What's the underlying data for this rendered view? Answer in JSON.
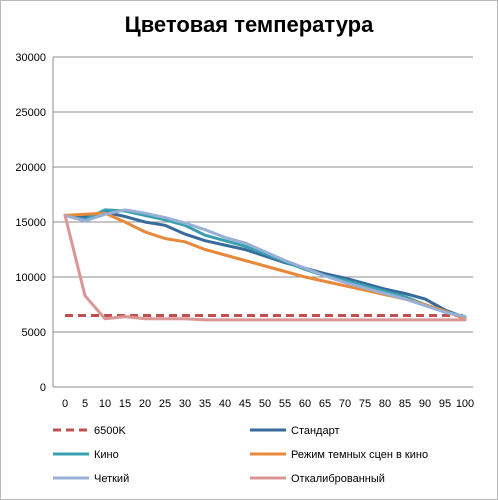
{
  "chart_data": {
    "type": "line",
    "title": "Цветовая температура",
    "xlabel": "",
    "ylabel": "",
    "ylim": [
      0,
      30000
    ],
    "yticks": [
      0,
      5000,
      10000,
      15000,
      20000,
      25000,
      30000
    ],
    "x": [
      0,
      5,
      10,
      15,
      20,
      25,
      30,
      35,
      40,
      45,
      50,
      55,
      60,
      65,
      70,
      75,
      80,
      85,
      90,
      95,
      100
    ],
    "grid": "horizontal",
    "legend_position": "bottom",
    "series": [
      {
        "name": "6500K",
        "color": "#c0504d",
        "dashed": true,
        "width": 3,
        "values": [
          6500,
          6500,
          6500,
          6500,
          6500,
          6500,
          6500,
          6500,
          6500,
          6500,
          6500,
          6500,
          6500,
          6500,
          6500,
          6500,
          6500,
          6500,
          6500,
          6500,
          6500
        ]
      },
      {
        "name": "Стандарт",
        "color": "#386b9c",
        "dashed": false,
        "width": 3,
        "values": [
          15600,
          15500,
          15900,
          15500,
          15000,
          14700,
          13900,
          13300,
          12900,
          12500,
          11900,
          11300,
          10800,
          10300,
          9900,
          9400,
          8900,
          8500,
          8000,
          7000,
          6300
        ]
      },
      {
        "name": "Кино",
        "color": "#37a0ae",
        "dashed": false,
        "width": 3,
        "values": [
          15600,
          15200,
          16100,
          16000,
          15600,
          15200,
          14700,
          13800,
          13300,
          12800,
          12100,
          11400,
          10700,
          10100,
          9700,
          9200,
          8700,
          8200,
          7500,
          6800,
          6400
        ]
      },
      {
        "name": "Режим темных сцен в кино",
        "color": "#e8883a",
        "dashed": false,
        "width": 3,
        "values": [
          15600,
          15700,
          15800,
          15000,
          14100,
          13500,
          13200,
          12500,
          12000,
          11500,
          11000,
          10500,
          10000,
          9600,
          9200,
          8800,
          8400,
          8000,
          7500,
          6900,
          6200
        ]
      },
      {
        "name": "Четкий",
        "color": "#98b0d6",
        "dashed": false,
        "width": 3,
        "values": [
          15600,
          15100,
          15700,
          16100,
          15800,
          15400,
          14900,
          14300,
          13600,
          13100,
          12300,
          11500,
          10800,
          10100,
          9500,
          9000,
          8500,
          8000,
          7400,
          6800,
          6400
        ]
      },
      {
        "name": "Откалиброванный",
        "color": "#d99694",
        "dashed": false,
        "width": 3,
        "values": [
          15600,
          8300,
          6200,
          6400,
          6200,
          6200,
          6200,
          6100,
          6100,
          6100,
          6100,
          6100,
          6100,
          6100,
          6100,
          6100,
          6100,
          6100,
          6100,
          6100,
          6100
        ]
      }
    ]
  }
}
